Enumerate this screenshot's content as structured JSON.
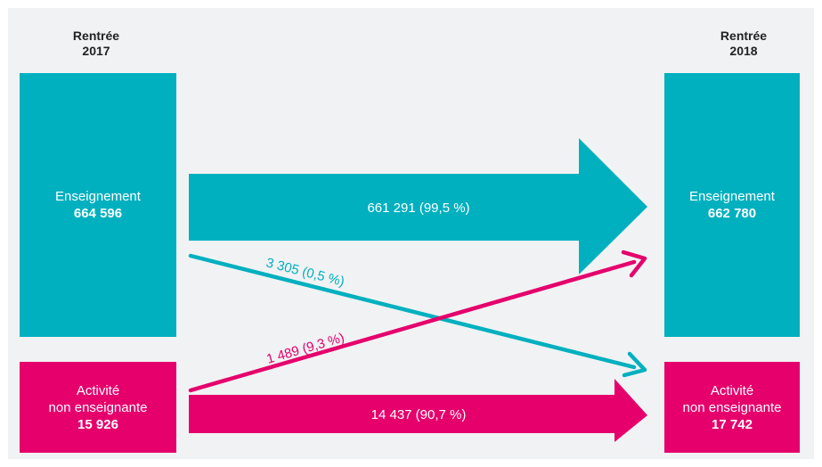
{
  "headers": {
    "left_line1": "Rentrée",
    "left_line2": "2017",
    "right_line1": "Rentrée",
    "right_line2": "2018"
  },
  "nodes": {
    "teaching_2017": {
      "label": "Enseignement",
      "value": "664 596"
    },
    "nonteaching_2017": {
      "label_line1": "Activité",
      "label_line2": "non enseignante",
      "value": "15 926"
    },
    "teaching_2018": {
      "label": "Enseignement",
      "value": "662 780"
    },
    "nonteaching_2018": {
      "label_line1": "Activité",
      "label_line2": "non enseignante",
      "value": "17 742"
    }
  },
  "flows": {
    "teaching_to_teaching": "661 291 (99,5 %)",
    "teaching_to_nonteaching": "3 305 (0,5 %)",
    "nonteaching_to_teaching": "1 489 (9,3 %)",
    "nonteaching_to_nonteaching": "14 437 (90,7 %)"
  },
  "colors": {
    "teaching": "#00b0bf",
    "nonteaching": "#e5006c",
    "background": "#f1f2f4"
  }
}
